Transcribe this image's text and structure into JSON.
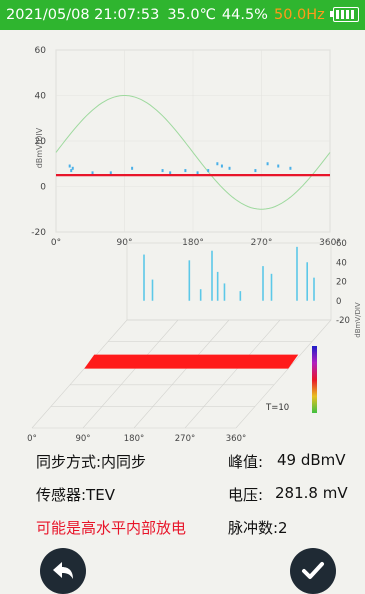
{
  "status_bar": {
    "datetime": "2021/05/08 21:07:53",
    "temperature": "35.0℃",
    "humidity": "44.5%",
    "frequency": "50.0Hz",
    "battery_level": 1.0,
    "bg_color": "#2fb52f",
    "frequency_color": "#ff9a1a"
  },
  "chart_data": [
    {
      "type": "scatter",
      "ylabel": "dBmV/DIV",
      "ylim": [
        -20,
        60
      ],
      "y_ticks": [
        "60",
        "40",
        "20",
        "0",
        "-20"
      ],
      "xlim": [
        0,
        360
      ],
      "x_ticks": [
        "0°",
        "90°",
        "180°",
        "270°",
        "360°"
      ],
      "threshold": 5,
      "threshold_color": "#e8152a",
      "reference_sine": {
        "amplitude": 25,
        "offset": 15,
        "color": "#9ed99e"
      },
      "points": [
        {
          "x": 18,
          "y": 9
        },
        {
          "x": 20,
          "y": 7
        },
        {
          "x": 22,
          "y": 8
        },
        {
          "x": 48,
          "y": 6
        },
        {
          "x": 72,
          "y": 6
        },
        {
          "x": 100,
          "y": 8
        },
        {
          "x": 140,
          "y": 7
        },
        {
          "x": 150,
          "y": 6
        },
        {
          "x": 170,
          "y": 7
        },
        {
          "x": 186,
          "y": 6
        },
        {
          "x": 200,
          "y": 7
        },
        {
          "x": 212,
          "y": 10
        },
        {
          "x": 218,
          "y": 9
        },
        {
          "x": 228,
          "y": 8
        },
        {
          "x": 262,
          "y": 7
        },
        {
          "x": 278,
          "y": 10
        },
        {
          "x": 292,
          "y": 9
        },
        {
          "x": 308,
          "y": 8
        }
      ]
    },
    {
      "type": "3d-bar",
      "ylim": [
        -20,
        60
      ],
      "y_ticks": [
        "60",
        "40",
        "20",
        "0",
        "-20"
      ],
      "ylabel": "dBmV/DIV",
      "x_ticks": [
        "0°",
        "90°",
        "180°",
        "270°",
        "360°"
      ],
      "period_label": "T=10",
      "series": [
        {
          "phase": 30,
          "value": 48
        },
        {
          "phase": 45,
          "value": 22
        },
        {
          "phase": 110,
          "value": 42
        },
        {
          "phase": 130,
          "value": 12
        },
        {
          "phase": 150,
          "value": 52
        },
        {
          "phase": 160,
          "value": 30
        },
        {
          "phase": 172,
          "value": 18
        },
        {
          "phase": 200,
          "value": 10
        },
        {
          "phase": 240,
          "value": 36
        },
        {
          "phase": 255,
          "value": 28
        },
        {
          "phase": 300,
          "value": 56
        },
        {
          "phase": 318,
          "value": 40
        },
        {
          "phase": 330,
          "value": 24
        }
      ]
    }
  ],
  "info": {
    "sync_mode": "同步方式:内同步",
    "peak_label": "峰值:",
    "peak_value": "49 dBmV",
    "sensor": "传感器:TEV",
    "voltage_label": "电压:",
    "voltage_value": "281.8 mV",
    "diagnosis": "可能是高水平内部放电",
    "pulse_count": "脉冲数:2",
    "diagnosis_color": "#e8152a"
  },
  "buttons": {
    "back_icon": "back-arrow-icon",
    "confirm_icon": "check-icon"
  }
}
